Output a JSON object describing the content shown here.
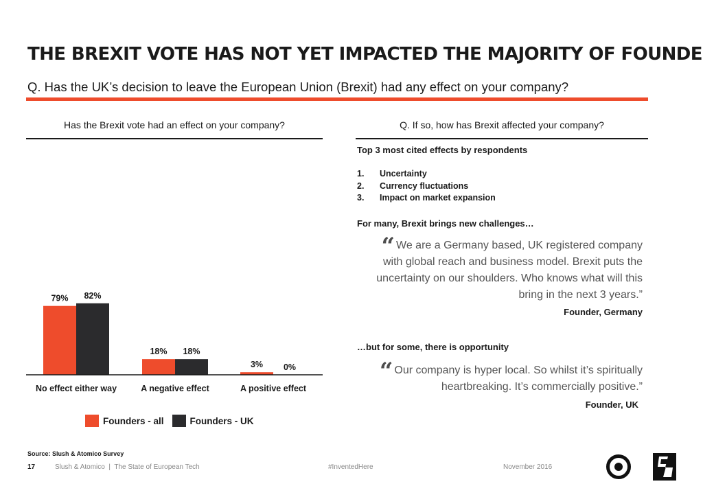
{
  "title": "THE BREXIT VOTE HAS NOT YET IMPACTED THE MAJORITY OF FOUNDERS",
  "question": "Q. Has the UK’s decision to leave the European Union (Brexit) had any effect on your company?",
  "colors": {
    "accent": "#ee4c2c",
    "founders_all": "#ee4c2c",
    "founders_uk": "#2b2b2d"
  },
  "left_panel": {
    "heading": "Has the Brexit vote had an effect on your company?"
  },
  "chart_data": {
    "type": "bar",
    "categories": [
      "No effect either way",
      "A negative effect",
      "A positive effect"
    ],
    "series": [
      {
        "name": "Founders - all",
        "values": [
          79,
          18,
          3
        ],
        "labels": [
          "79%",
          "18%",
          "3%"
        ],
        "color": "#ee4c2c"
      },
      {
        "name": "Founders - UK",
        "values": [
          82,
          18,
          0
        ],
        "labels": [
          "82%",
          "18%",
          "0%"
        ],
        "color": "#2b2b2d"
      }
    ],
    "ylim": [
      0,
      100
    ],
    "legend_position": "bottom",
    "grid": false
  },
  "right_panel": {
    "heading": "Q. If so, how has Brexit affected your company?",
    "effects_heading": "Top 3 most cited effects by respondents",
    "effects": [
      {
        "num": "1.",
        "text": "Uncertainty"
      },
      {
        "num": "2.",
        "text": "Currency fluctuations"
      },
      {
        "num": "3.",
        "text": "Impact on market expansion"
      }
    ],
    "challenges_heading": "For many, Brexit brings new challenges…",
    "quote_1": "We are a Germany based, UK registered company with global reach and business model. Brexit puts the uncertainty on our shoulders. Who knows what will this bring in the next 3 years.”",
    "attribution_1": "Founder, Germany",
    "opportunity_heading": "…but for some, there is opportunity",
    "quote_2": "Our company is hyper local. So whilst it’s spiritually heartbreaking. It’s commercially positive.”",
    "attribution_2": "Founder, UK",
    "quote_mark": "“"
  },
  "footer": {
    "source": "Source: Slush & Atomico Survey",
    "page_number": "17",
    "publication": "Slush & Atomico  |  The State of European Tech",
    "hashtag": "#InventedHere",
    "date": "November 2016",
    "logo_slush": "slush-logo-icon",
    "logo_atomico": "atomico-logo-icon"
  }
}
